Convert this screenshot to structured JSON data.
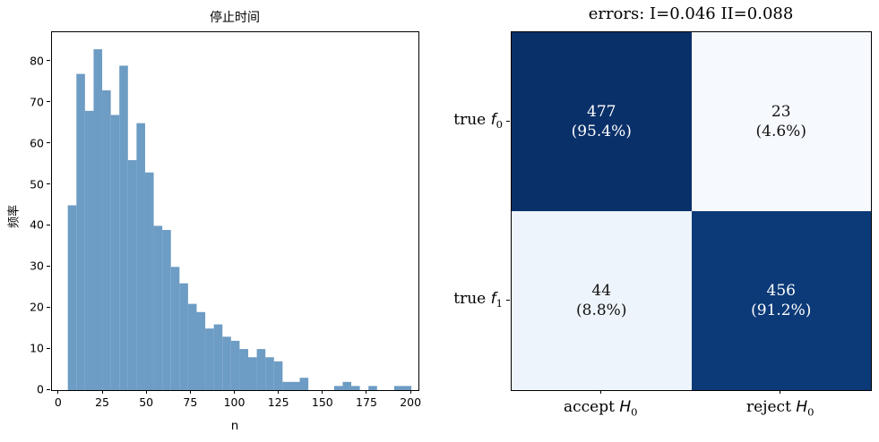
{
  "figure": {
    "background": "#ffffff",
    "spine_color": "#000000"
  },
  "chart_data": [
    {
      "type": "bar",
      "subtype": "histogram",
      "title": "停止时间",
      "xlabel": "n",
      "ylabel": "频率",
      "bar_color": "#6d9cc4",
      "bin_start": 5,
      "bin_width": 4.875,
      "values": [
        45,
        77,
        68,
        83,
        73,
        67,
        79,
        56,
        65,
        53,
        40,
        39,
        30,
        26,
        21,
        19,
        15,
        16,
        13,
        12,
        10,
        8,
        10,
        8,
        7,
        2,
        2,
        3,
        0,
        0,
        0,
        1,
        2,
        1,
        0,
        1,
        0,
        0,
        1,
        1
      ],
      "xlim": [
        -4,
        204
      ],
      "ylim": [
        0,
        87.15
      ],
      "xticks": [
        0,
        25,
        50,
        75,
        100,
        125,
        150,
        175,
        200
      ],
      "yticks": [
        0,
        10,
        20,
        30,
        40,
        50,
        60,
        70,
        80
      ],
      "grid": false,
      "legend": null
    },
    {
      "type": "heatmap",
      "subtype": "confusion-matrix",
      "title": "errors: I=0.046 II=0.088",
      "type_I_error": 0.046,
      "type_II_error": 0.088,
      "row_labels": [
        "true f₀",
        "true f₁"
      ],
      "col_labels": [
        "accept H₀",
        "reject H₀"
      ],
      "rows": [
        {
          "prefix": "true ",
          "sym": "f",
          "sub": "0"
        },
        {
          "prefix": "true ",
          "sym": "f",
          "sub": "1"
        }
      ],
      "cols": [
        {
          "prefix": "accept ",
          "sym": "H",
          "sub": "0"
        },
        {
          "prefix": "reject ",
          "sym": "H",
          "sub": "0"
        }
      ],
      "counts": [
        [
          477,
          23
        ],
        [
          44,
          456
        ]
      ],
      "percents": [
        [
          "(95.4%)",
          "(4.6%)"
        ],
        [
          "(8.8%)",
          "(91.2%)"
        ]
      ],
      "cell_colors": [
        [
          "#0a3069",
          "#f6f9fe"
        ],
        [
          "#edf4fb",
          "#0c3a78"
        ]
      ],
      "text_colors": [
        [
          "#ffffff",
          "#111111"
        ],
        [
          "#111111",
          "#ffffff"
        ]
      ],
      "grid": false,
      "legend": null
    }
  ]
}
